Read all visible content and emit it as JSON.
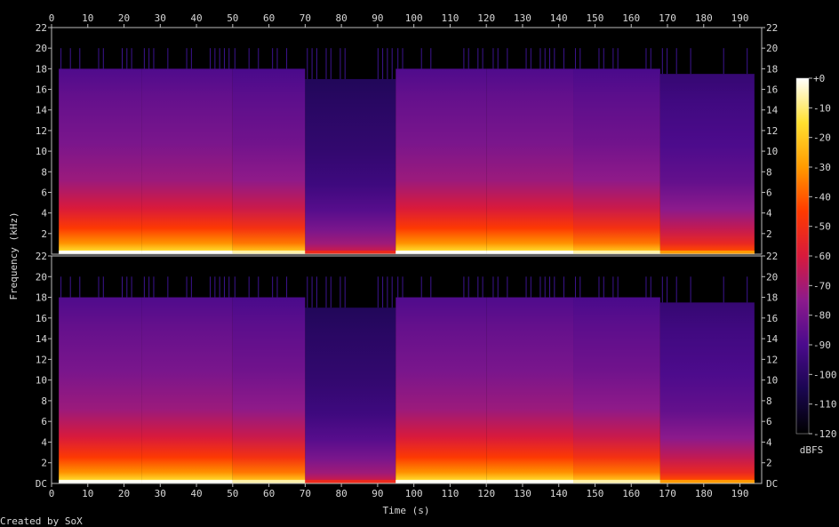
{
  "chart_data": {
    "type": "heatmap",
    "title": "",
    "xlabel": "Time (s)",
    "ylabel": "Frequency (kHz)",
    "xlim": [
      0,
      196
    ],
    "ylim_khz": [
      0,
      22
    ],
    "x_ticks": [
      0,
      10,
      20,
      30,
      40,
      50,
      60,
      70,
      80,
      90,
      100,
      110,
      120,
      130,
      140,
      150,
      160,
      170,
      180,
      190
    ],
    "y_ticks": [
      2,
      4,
      6,
      8,
      10,
      12,
      14,
      16,
      18,
      20,
      22
    ],
    "y_zero_label": "DC",
    "channels": 2,
    "colorbar": {
      "label": "dBFS",
      "ticks": [
        "+0",
        "-10",
        "-20",
        "-30",
        "-40",
        "-50",
        "-60",
        "-70",
        "-80",
        "-90",
        "-100",
        "-110",
        "-120"
      ],
      "range_db": [
        -120,
        0
      ],
      "colors": [
        "#000000",
        "#1a0650",
        "#4a0a8c",
        "#8c1a8c",
        "#d81a3c",
        "#ff3a00",
        "#ff9a00",
        "#ffe030",
        "#ffffff"
      ]
    },
    "segments": [
      {
        "start": 2,
        "end": 25,
        "cutoff_khz": 18,
        "level": 1.0
      },
      {
        "start": 25,
        "end": 50,
        "cutoff_khz": 18,
        "level": 1.0
      },
      {
        "start": 50,
        "end": 70,
        "cutoff_khz": 18,
        "level": 0.95
      },
      {
        "start": 70,
        "end": 95,
        "cutoff_khz": 17,
        "level": 0.55
      },
      {
        "start": 95,
        "end": 120,
        "cutoff_khz": 18,
        "level": 1.0
      },
      {
        "start": 120,
        "end": 144,
        "cutoff_khz": 18,
        "level": 1.0
      },
      {
        "start": 144,
        "end": 168,
        "cutoff_khz": 18,
        "level": 0.95
      },
      {
        "start": 168,
        "end": 194,
        "cutoff_khz": 17.5,
        "level": 0.75
      }
    ]
  },
  "footer": {
    "credit": "Created by SoX"
  }
}
